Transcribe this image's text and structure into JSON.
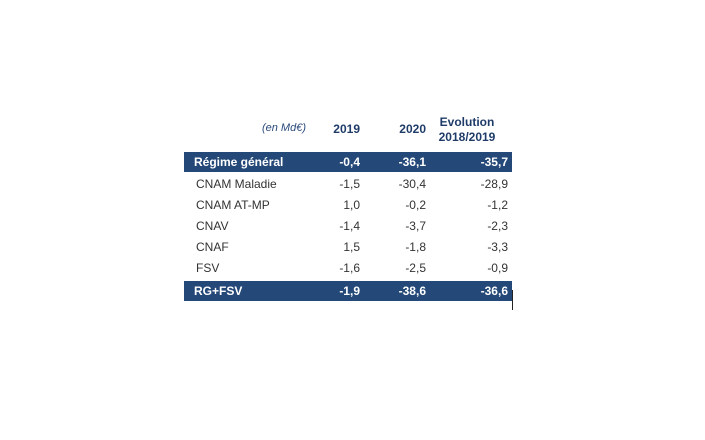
{
  "table": {
    "unit_label": "(en Md€)",
    "columns": [
      "2019",
      "2020",
      "Evolution",
      "2018/2019"
    ],
    "rows": [
      {
        "label": "Régime général",
        "v2019": "-0,4",
        "v2020": "-36,1",
        "evolution": "-35,7"
      },
      {
        "label": "CNAM Maladie",
        "v2019": "-1,5",
        "v2020": "-30,4",
        "evolution": "-28,9"
      },
      {
        "label": "CNAM AT-MP",
        "v2019": "1,0",
        "v2020": "-0,2",
        "evolution": "-1,2"
      },
      {
        "label": "CNAV",
        "v2019": "-1,4",
        "v2020": "-3,7",
        "evolution": "-2,3"
      },
      {
        "label": "CNAF",
        "v2019": "1,5",
        "v2020": "-1,8",
        "evolution": "-3,3"
      },
      {
        "label": "FSV",
        "v2019": "-1,6",
        "v2020": "-2,5",
        "evolution": "-0,9"
      },
      {
        "label": "RG+FSV",
        "v2019": "-1,9",
        "v2020": "-38,6",
        "evolution": "-36,6"
      }
    ]
  },
  "colors": {
    "header_band": "#244877",
    "header_text": "#1f3b68"
  }
}
